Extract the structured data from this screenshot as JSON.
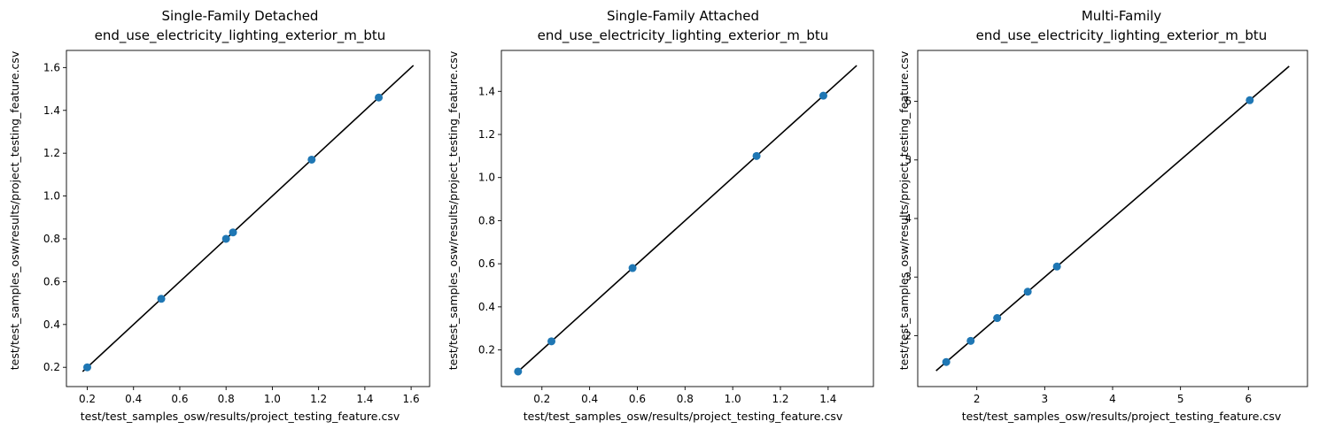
{
  "chart_data": [
    {
      "type": "scatter",
      "title": "Single-Family Detached",
      "subtitle": "end_use_electricity_lighting_exterior_m_btu",
      "xlabel": "test/test_samples_osw/results/project_testing_feature.csv",
      "ylabel": "test/test_samples_osw/results/project_testing_feature.csv",
      "xlim": [
        0.11,
        1.68
      ],
      "ylim": [
        0.11,
        1.68
      ],
      "xticks": [
        0.2,
        0.4,
        0.6,
        0.8,
        1.0,
        1.2,
        1.4,
        1.6
      ],
      "yticks": [
        0.2,
        0.4,
        0.6,
        0.8,
        1.0,
        1.2,
        1.4,
        1.6
      ],
      "xtick_labels": [
        "0.2",
        "0.4",
        "0.6",
        "0.8",
        "1.0",
        "1.2",
        "1.4",
        "1.6"
      ],
      "ytick_labels": [
        "0.2",
        "0.4",
        "0.6",
        "0.8",
        "1.0",
        "1.2",
        "1.4",
        "1.6"
      ],
      "points": {
        "x": [
          0.2,
          0.52,
          0.8,
          0.83,
          1.17,
          1.46
        ],
        "y": [
          0.2,
          0.52,
          0.8,
          0.83,
          1.17,
          1.46
        ]
      },
      "reference_line": {
        "x": [
          0.18,
          1.61
        ],
        "y": [
          0.18,
          1.61
        ]
      },
      "grid": false,
      "point_color": "#1f77b4",
      "line_color": "#000000"
    },
    {
      "type": "scatter",
      "title": "Single-Family Attached",
      "subtitle": "end_use_electricity_lighting_exterior_m_btu",
      "xlabel": "test/test_samples_osw/results/project_testing_feature.csv",
      "ylabel": "test/test_samples_osw/results/project_testing_feature.csv",
      "xlim": [
        0.03,
        1.59
      ],
      "ylim": [
        0.03,
        1.59
      ],
      "xticks": [
        0.2,
        0.4,
        0.6,
        0.8,
        1.0,
        1.2,
        1.4
      ],
      "yticks": [
        0.2,
        0.4,
        0.6,
        0.8,
        1.0,
        1.2,
        1.4
      ],
      "xtick_labels": [
        "0.2",
        "0.4",
        "0.6",
        "0.8",
        "1.0",
        "1.2",
        "1.4"
      ],
      "ytick_labels": [
        "0.2",
        "0.4",
        "0.6",
        "0.8",
        "1.0",
        "1.2",
        "1.4"
      ],
      "points": {
        "x": [
          0.1,
          0.24,
          0.58,
          1.1,
          1.38
        ],
        "y": [
          0.1,
          0.24,
          0.58,
          1.1,
          1.38
        ]
      },
      "reference_line": {
        "x": [
          0.09,
          1.52
        ],
        "y": [
          0.09,
          1.52
        ]
      },
      "grid": false,
      "point_color": "#1f77b4",
      "line_color": "#000000"
    },
    {
      "type": "scatter",
      "title": "Multi-Family",
      "subtitle": "end_use_electricity_lighting_exterior_m_btu",
      "xlabel": "test/test_samples_osw/results/project_testing_feature.csv",
      "ylabel": "test/test_samples_osw/results/project_testing_feature.csv",
      "xlim": [
        1.13,
        6.87
      ],
      "ylim": [
        1.13,
        6.87
      ],
      "xticks": [
        2,
        3,
        4,
        5,
        6
      ],
      "yticks": [
        2,
        3,
        4,
        5,
        6
      ],
      "xtick_labels": [
        "2",
        "3",
        "4",
        "5",
        "6"
      ],
      "ytick_labels": [
        "2",
        "3",
        "4",
        "5",
        "6"
      ],
      "points": {
        "x": [
          1.55,
          1.91,
          2.3,
          2.75,
          3.18,
          6.02
        ],
        "y": [
          1.55,
          1.91,
          2.3,
          2.75,
          3.18,
          6.02
        ]
      },
      "reference_line": {
        "x": [
          1.4,
          6.6
        ],
        "y": [
          1.4,
          6.6
        ]
      },
      "grid": false,
      "point_color": "#1f77b4",
      "line_color": "#000000"
    }
  ]
}
